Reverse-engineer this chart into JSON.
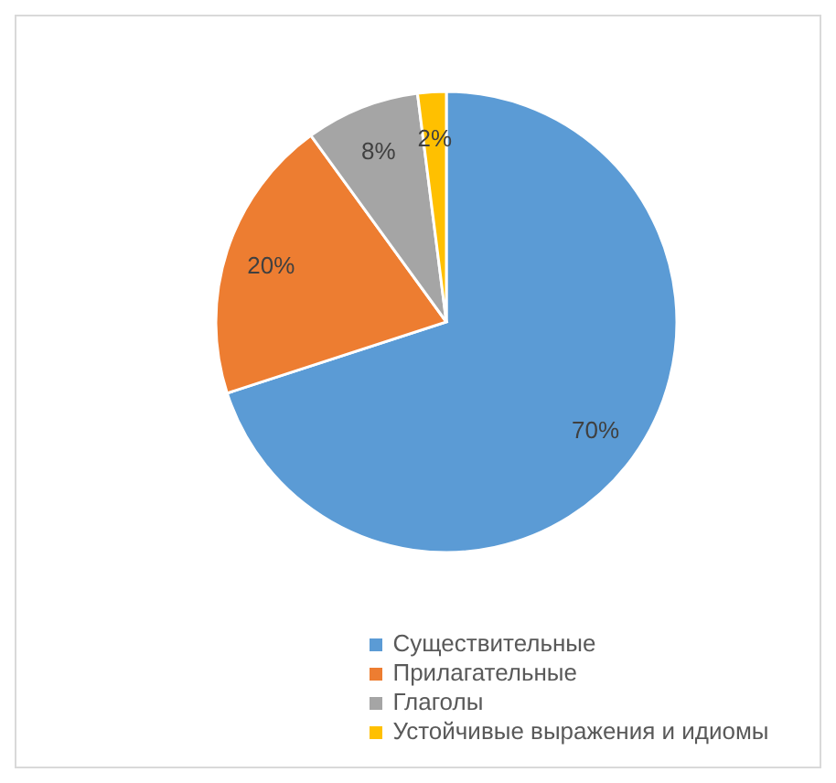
{
  "chart_data": {
    "type": "pie",
    "categories": [
      "Существительные",
      "Прилагательные",
      "Глаголы",
      "Устойчивые выражения и идиомы"
    ],
    "values": [
      70,
      20,
      8,
      2
    ],
    "colors": [
      "#5b9bd5",
      "#ed7d31",
      "#a5a5a5",
      "#ffc000"
    ],
    "value_labels": [
      "70%",
      "20%",
      "8%",
      "2%"
    ],
    "legend": "bottom"
  }
}
